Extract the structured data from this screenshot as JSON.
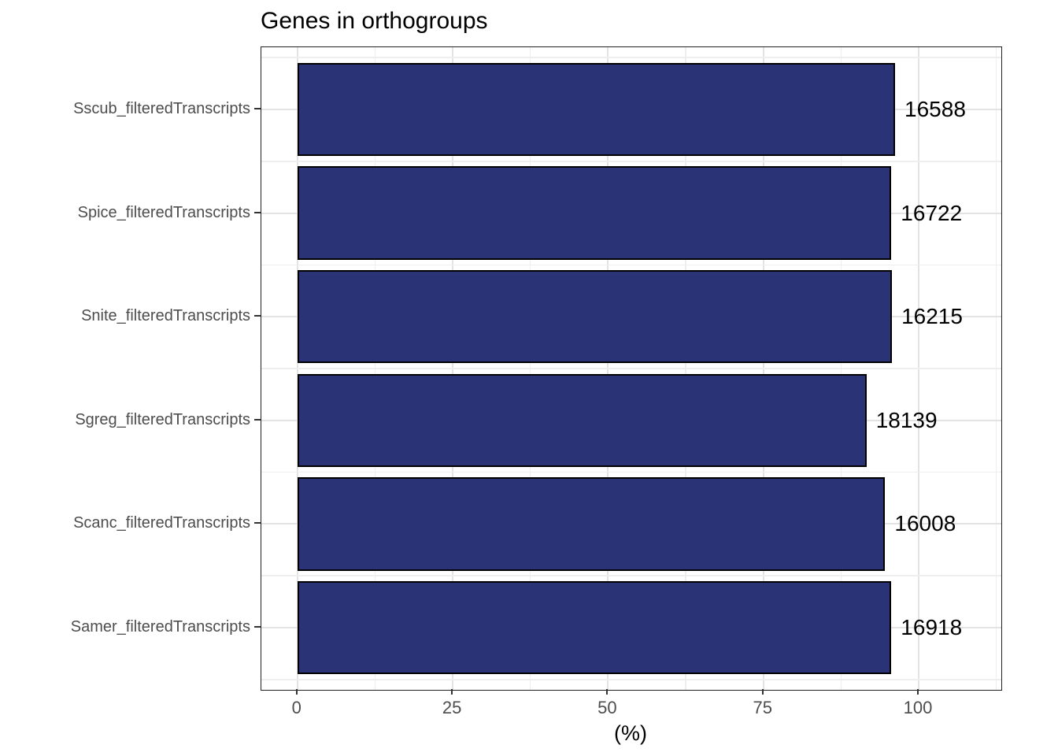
{
  "chart_data": {
    "type": "bar",
    "orientation": "horizontal",
    "title": "Genes in orthogroups",
    "xlabel": "(%)",
    "ylabel": "",
    "categories": [
      "Sscub_filteredTranscripts",
      "Spice_filteredTranscripts",
      "Snite_filteredTranscripts",
      "Sgreg_filteredTranscripts",
      "Scanc_filteredTranscripts",
      "Samer_filteredTranscripts"
    ],
    "values": [
      96.2,
      95.6,
      95.7,
      91.6,
      94.6,
      95.6
    ],
    "bar_labels": [
      "16588",
      "16722",
      "16215",
      "18139",
      "16008",
      "16918"
    ],
    "x_ticks": [
      0,
      25,
      50,
      75,
      100
    ],
    "x_minor_ticks": [
      12.5,
      37.5,
      62.5,
      87.5,
      112.5
    ],
    "xlim": [
      -5.8,
      113.3
    ],
    "grid": true,
    "legend": false,
    "colors": {
      "bar_fill": "#2B3377",
      "bar_stroke": "#000000",
      "grid_major": "#E3E3E3",
      "grid_minor": "#EEEEEE",
      "axis_text": "#4D4D4D",
      "panel_border": "#222222",
      "title": "#000000",
      "value_label": "#000000"
    }
  }
}
